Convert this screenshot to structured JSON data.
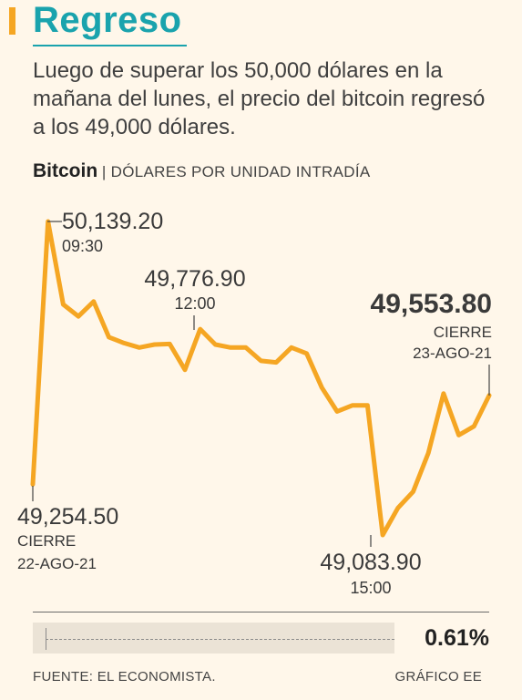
{
  "header": {
    "title": "Regreso",
    "subtitle": "Luego de superar los 50,000 dólares en la mañana del lunes, el precio del bitcoin regresó a los 49,000 dólares."
  },
  "chart_label": {
    "name": "Bitcoin",
    "unit": "| DÓLARES POR UNIDAD INTRADÍA"
  },
  "chart_data": {
    "type": "line",
    "title": "Bitcoin",
    "ylabel": "DÓLARES POR UNIDAD INTRADÍA",
    "xlabel": "",
    "ylim": [
      49000,
      50200
    ],
    "line_color": "#f5a623",
    "x": [
      0,
      1,
      2,
      3,
      4,
      5,
      6,
      7,
      8,
      9,
      10,
      11,
      12,
      13,
      14,
      15,
      16,
      17,
      18,
      19,
      20,
      21,
      22,
      23,
      24,
      25,
      26,
      27,
      28,
      29,
      30
    ],
    "values": [
      49254.5,
      50139.2,
      49860,
      49820,
      49870,
      49750,
      49730,
      49715,
      49725,
      49727,
      49640,
      49776.9,
      49725,
      49715,
      49715,
      49670,
      49665,
      49715,
      49695,
      49580,
      49500,
      49520,
      49520,
      49083.9,
      49175,
      49230,
      49360,
      49560,
      49420,
      49450,
      49553.8
    ],
    "annotations": [
      {
        "value": "50,139.20",
        "time": "09:30"
      },
      {
        "value": "49,776.90",
        "time": "12:00"
      },
      {
        "value": "49,553.80",
        "status": "CIERRE",
        "date": "23-AGO-21"
      },
      {
        "value": "49,254.50",
        "status": "CIERRE",
        "date": "22-AGO-21"
      },
      {
        "value": "49,083.90",
        "time": "15:00"
      }
    ]
  },
  "change": {
    "value": "0.61%"
  },
  "footer": {
    "source": "FUENTE: EL ECONOMISTA.",
    "credit": "GRÁFICO EE"
  }
}
